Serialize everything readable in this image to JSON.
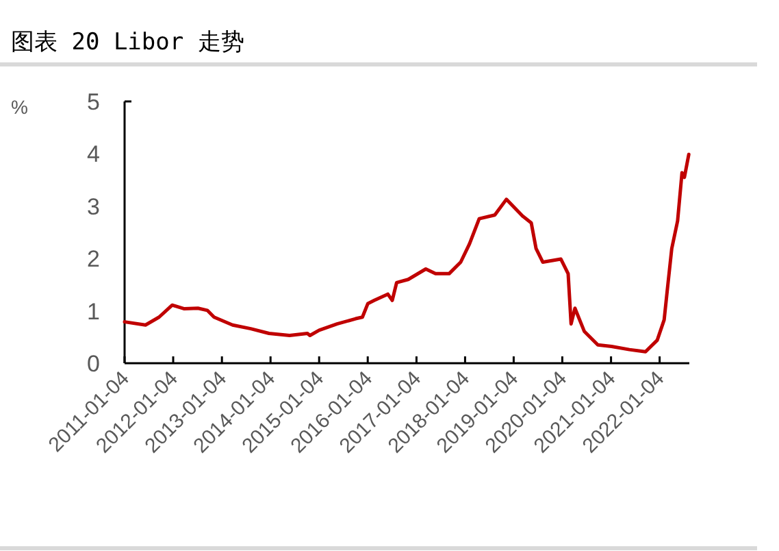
{
  "chart_data": {
    "type": "line",
    "title": "图表 20 Libor 走势",
    "ylabel": "%",
    "x": [
      "2011-01-04",
      "2011-06-10",
      "2011-09-20",
      "2011-12-28",
      "2012-03-28",
      "2012-07-08",
      "2012-09-16",
      "2012-11-06",
      "2013-03-25",
      "2013-08-08",
      "2013-12-24",
      "2014-05-27",
      "2014-10-08",
      "2014-10-27",
      "2015-01-04",
      "2015-05-19",
      "2015-10-05",
      "2015-11-25",
      "2016-01-05",
      "2016-02-22",
      "2016-06-03",
      "2016-07-06",
      "2016-08-08",
      "2016-11-03",
      "2017-03-15",
      "2017-05-27",
      "2017-09-06",
      "2017-12-02",
      "2018-02-06",
      "2018-04-20",
      "2018-08-15",
      "2018-11-10",
      "2019-03-12",
      "2019-05-16",
      "2019-06-21",
      "2019-08-11",
      "2019-12-24",
      "2020-02-17",
      "2020-03-10",
      "2020-04-08",
      "2020-06-17",
      "2020-09-27",
      "2021-01-08",
      "2021-05-22",
      "2021-09-20",
      "2021-12-17",
      "2022-02-07",
      "2022-03-01",
      "2022-04-05",
      "2022-05-19",
      "2022-06-21",
      "2022-07-09",
      "2022-08-11"
    ],
    "series": [
      {
        "color": "#c00000",
        "values": [
          0.79,
          0.73,
          0.88,
          1.11,
          1.04,
          1.05,
          1.01,
          0.88,
          0.73,
          0.66,
          0.57,
          0.53,
          0.57,
          0.53,
          0.63,
          0.75,
          0.85,
          0.88,
          1.14,
          1.2,
          1.32,
          1.2,
          1.54,
          1.6,
          1.8,
          1.71,
          1.71,
          1.93,
          2.28,
          2.76,
          2.83,
          3.13,
          2.81,
          2.68,
          2.19,
          1.93,
          1.99,
          1.71,
          0.75,
          1.05,
          0.61,
          0.35,
          0.32,
          0.26,
          0.22,
          0.44,
          0.83,
          1.36,
          2.19,
          2.72,
          3.64,
          3.55,
          3.99
        ]
      }
    ],
    "xlim": [
      "2011-01-04",
      "2022-08-15"
    ],
    "xticks": [
      "2011-01-04",
      "2012-01-04",
      "2013-01-04",
      "2014-01-04",
      "2015-01-04",
      "2016-01-04",
      "2017-01-04",
      "2018-01-04",
      "2019-01-04",
      "2020-01-04",
      "2021-01-04",
      "2022-01-04"
    ],
    "ylim": [
      0,
      5
    ],
    "yticks": [
      0,
      1,
      2,
      3,
      4,
      5
    ],
    "grid": false,
    "marker": "none",
    "line_style": "solid"
  }
}
